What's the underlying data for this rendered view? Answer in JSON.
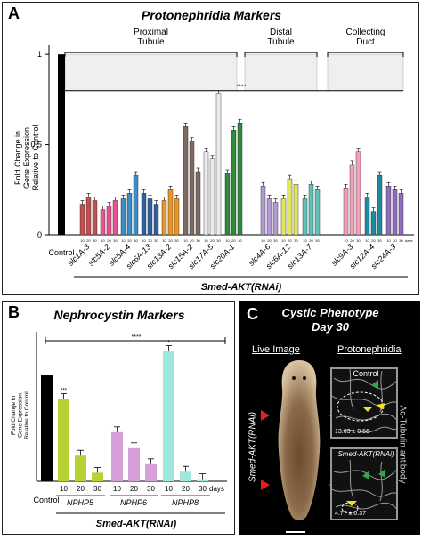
{
  "chart_data": [
    {
      "type": "bar",
      "panel_label": "A",
      "title": "Protonephridia Markers",
      "ylabel": "Fold Change in Gene  Expression Relative to Control",
      "ylim": [
        0,
        1.05
      ],
      "yticks": [
        0,
        0.5,
        1
      ],
      "segments": [
        "Proximal Tubule",
        "Distal Tubule",
        "Collecting Duct"
      ],
      "significance": "****",
      "control": {
        "label": "Control",
        "value": 1.0,
        "color": "#000000"
      },
      "timepoint_labels": [
        "10",
        "20",
        "30"
      ],
      "days_label": "days",
      "treatment_label": "Smed-AKT(RNAi)",
      "genes": [
        {
          "name": "slc1A-3",
          "segment": "Proximal Tubule",
          "color": "#c0504d",
          "values": [
            0.17,
            0.21,
            0.19
          ]
        },
        {
          "name": "slc5A-2",
          "segment": "Proximal Tubule",
          "color": "#e8538f",
          "values": [
            0.14,
            0.16,
            0.19
          ]
        },
        {
          "name": "slc5A-4",
          "segment": "Proximal Tubule",
          "color": "#3c8dc5",
          "values": [
            0.2,
            0.23,
            0.33
          ]
        },
        {
          "name": "slc6A-13",
          "segment": "Proximal Tubule",
          "color": "#2e5f9e",
          "values": [
            0.23,
            0.2,
            0.17
          ]
        },
        {
          "name": "slc13A-2",
          "segment": "Proximal Tubule",
          "color": "#e8942a",
          "values": [
            0.19,
            0.25,
            0.2
          ]
        },
        {
          "name": "slc15A-2",
          "segment": "Proximal Tubule",
          "color": "#7f6b62",
          "values": [
            0.6,
            0.52,
            0.35
          ]
        },
        {
          "name": "slc17A-5",
          "segment": "Proximal Tubule",
          "color": "#ececec",
          "values": [
            0.46,
            0.42,
            0.78
          ]
        },
        {
          "name": "slc20A-1",
          "segment": "Proximal Tubule",
          "color": "#2e8b3a",
          "values": [
            0.34,
            0.58,
            0.62
          ]
        },
        {
          "name": "slc4A-6",
          "segment": "Distal Tubule",
          "color": "#b39ad6",
          "values": [
            0.27,
            0.2,
            0.18
          ]
        },
        {
          "name": "slc6A-12",
          "segment": "Distal Tubule",
          "color": "#e3e65c",
          "values": [
            0.2,
            0.31,
            0.28
          ]
        },
        {
          "name": "slc13A-7",
          "segment": "Distal Tubule",
          "color": "#5fc1b8",
          "values": [
            0.2,
            0.28,
            0.25
          ]
        },
        {
          "name": "slc9A-3",
          "segment": "Collecting Duct",
          "color": "#f2a0b8",
          "values": [
            0.26,
            0.39,
            0.46
          ]
        },
        {
          "name": "slc12A-4",
          "segment": "Collecting Duct",
          "color": "#1f8aa0",
          "values": [
            0.21,
            0.13,
            0.33
          ]
        },
        {
          "name": "slc24A-3",
          "segment": "Collecting Duct",
          "color": "#8e6dbb",
          "values": [
            0.27,
            0.25,
            0.23
          ]
        }
      ]
    },
    {
      "type": "bar",
      "panel_label": "B",
      "title": "Nephrocystin Markers",
      "ylabel": "Fold Change in Gene  Expression Relative to Control",
      "ylim": [
        0,
        1.4
      ],
      "significance": "****",
      "control": {
        "label": "Control",
        "value": 1.0,
        "color": "#000000"
      },
      "timepoint_labels": [
        "10",
        "20",
        "30"
      ],
      "days_label": "days",
      "treatment_label": "Smed-AKT(RNAi)",
      "genes": [
        {
          "name": "NPHP5",
          "color": "#b5d334",
          "values": [
            0.77,
            0.24,
            0.08
          ],
          "marks": [
            "***",
            "",
            ""
          ]
        },
        {
          "name": "NPHP6",
          "color": "#d89ed8",
          "values": [
            0.46,
            0.31,
            0.16
          ],
          "marks": [
            "",
            "",
            ""
          ]
        },
        {
          "name": "NPHP8",
          "color": "#9fe8df",
          "values": [
            1.22,
            0.09,
            0.02
          ],
          "marks": [
            "*",
            "",
            ""
          ]
        }
      ]
    }
  ],
  "panel_c": {
    "label": "C",
    "title_line1": "Cystic Phenotype",
    "title_line2": "Day 30",
    "live_header": "Live Image",
    "proto_header": "Protonephridia",
    "control_label": "Control",
    "rnai_label": "Smed-AKT(RNAi)",
    "rnai_side_label": "Smed-AKT(RNAi)",
    "antibody_label": "Ac-Tubulin antibody",
    "control_count": "13.63 ± 0.56",
    "rnai_count": "4.77 ± 0.37"
  }
}
